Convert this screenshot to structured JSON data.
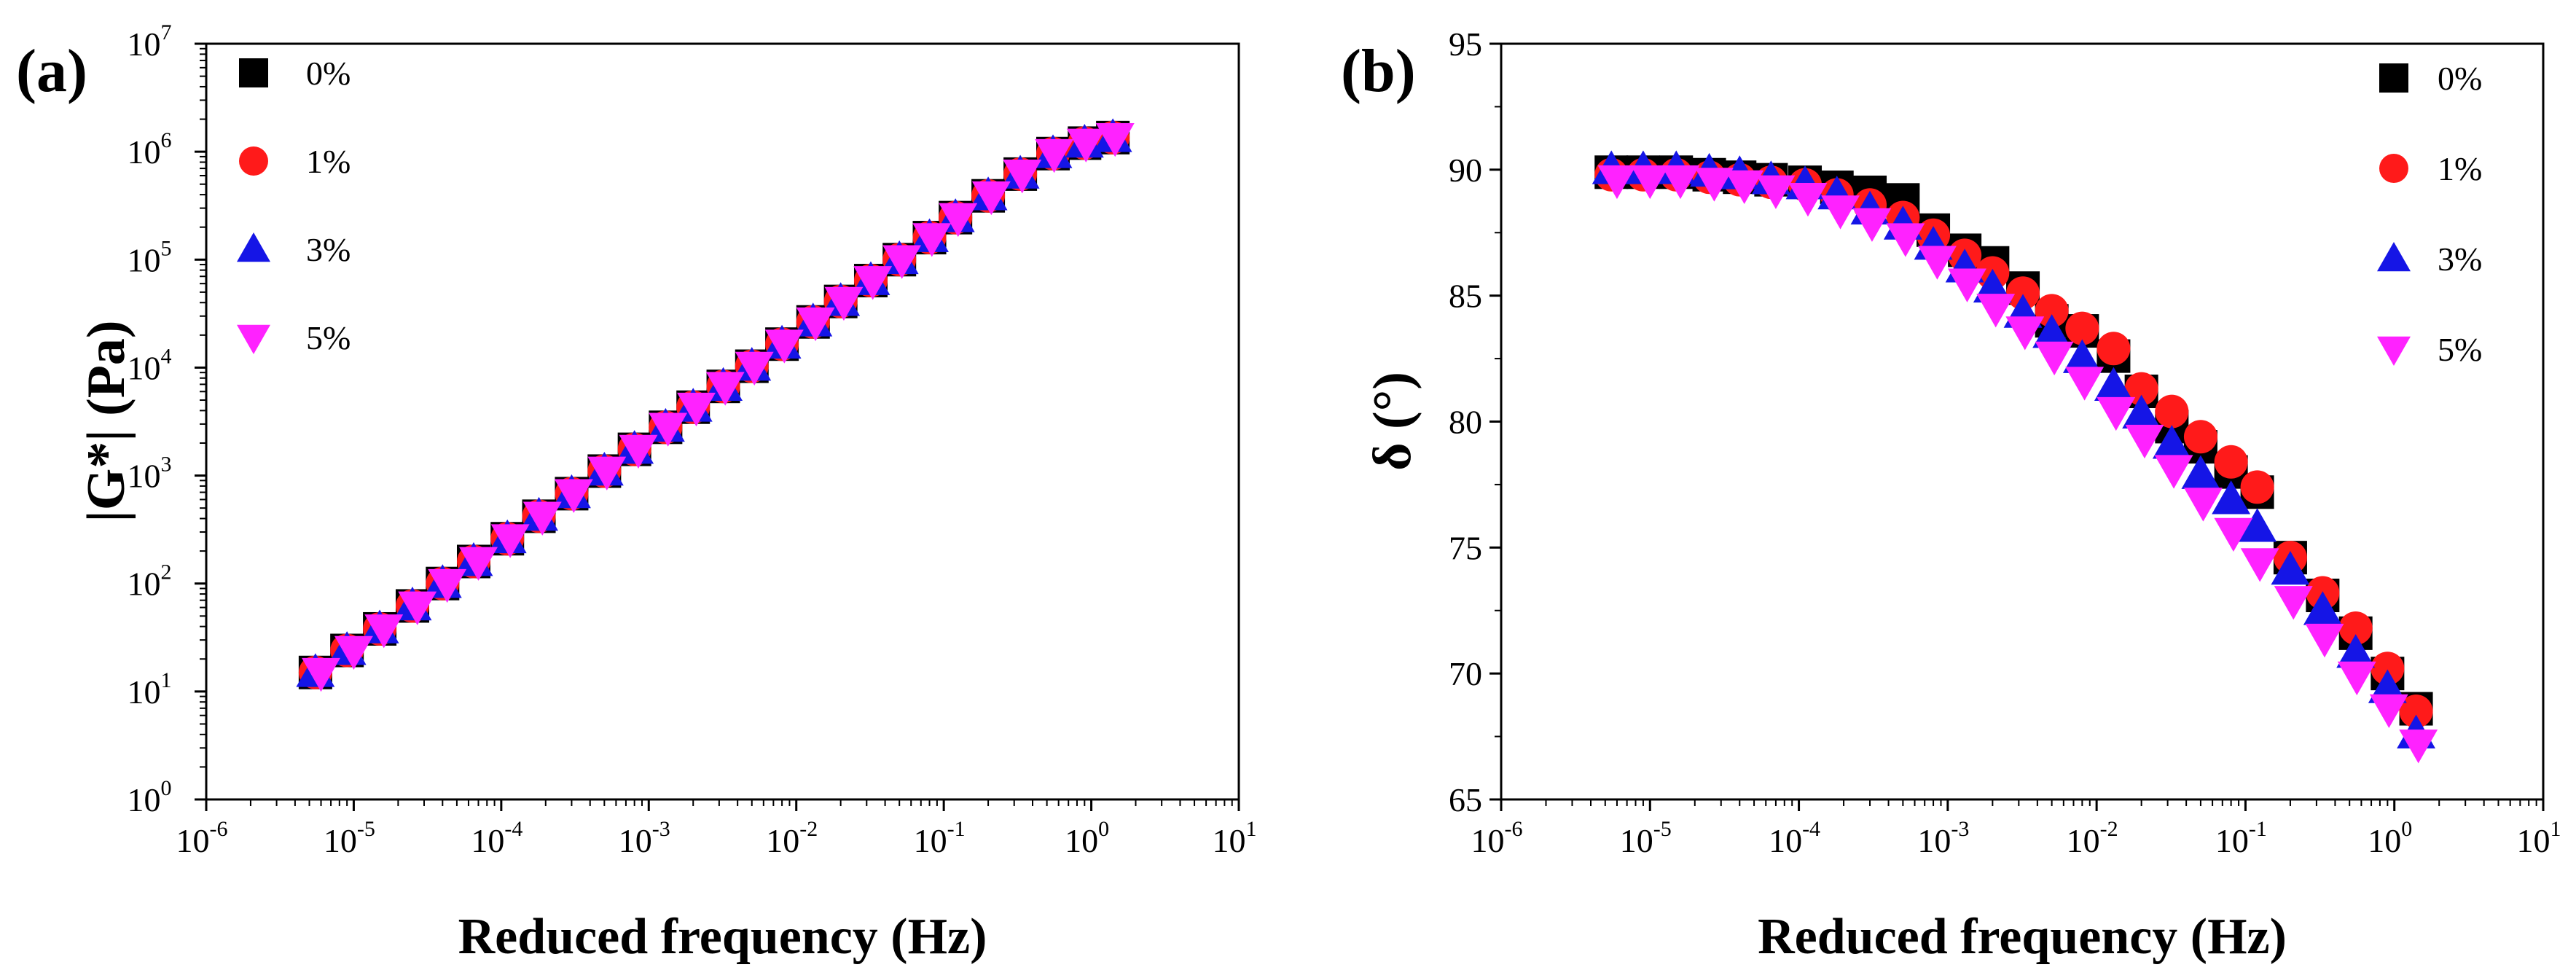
{
  "colors": {
    "s0": "#000000",
    "s1": "#ff1a1a",
    "s3": "#1515e6",
    "s5": "#ff22ff",
    "axis": "#000000"
  },
  "chart_data": [
    {
      "id": "a",
      "panel_label": "(a)",
      "type": "scatter",
      "xscale": "log",
      "yscale": "log",
      "xlabel": "Reduced frequency (Hz)",
      "ylabel": "|G*| (Pa)",
      "xlim": [
        1e-06,
        10
      ],
      "ylim": [
        1,
        10000000.0
      ],
      "xticks": [
        {
          "base": "10",
          "exp": "-6"
        },
        {
          "base": "10",
          "exp": "-5"
        },
        {
          "base": "10",
          "exp": "-4"
        },
        {
          "base": "10",
          "exp": "-3"
        },
        {
          "base": "10",
          "exp": "-2"
        },
        {
          "base": "10",
          "exp": "-1"
        },
        {
          "base": "10",
          "exp": "0"
        },
        {
          "base": "10",
          "exp": "1"
        }
      ],
      "yticks": [
        {
          "base": "10",
          "exp": "0"
        },
        {
          "base": "10",
          "exp": "1"
        },
        {
          "base": "10",
          "exp": "2"
        },
        {
          "base": "10",
          "exp": "3"
        },
        {
          "base": "10",
          "exp": "4"
        },
        {
          "base": "10",
          "exp": "5"
        },
        {
          "base": "10",
          "exp": "6"
        },
        {
          "base": "10",
          "exp": "7"
        }
      ],
      "legend_position": "top-left",
      "series": [
        {
          "name": "0%",
          "marker": "square",
          "color": "#000000",
          "x": [
            5.5e-06,
            9e-06,
            1.5e-05,
            2.5e-05,
            4e-05,
            6.5e-05,
            0.00011,
            0.00018,
            0.0003,
            0.0005,
            0.0008,
            0.0013,
            0.002,
            0.0032,
            0.005,
            0.008,
            0.013,
            0.02,
            0.032,
            0.05,
            0.08,
            0.12,
            0.2,
            0.33,
            0.55,
            0.9,
            1.4
          ],
          "y": [
            15,
            24,
            38,
            62,
            100,
            160,
            260,
            420,
            680,
            1100,
            1750,
            2800,
            4300,
            6700,
            10300,
            16500,
            26500,
            41000,
            64000,
            100000,
            160000,
            245000,
            390000,
            620000,
            960000,
            1200000,
            1350000
          ]
        },
        {
          "name": "1%",
          "marker": "circle",
          "color": "#ff1a1a",
          "x": [
            5.5e-06,
            9e-06,
            1.5e-05,
            2.5e-05,
            4e-05,
            6.5e-05,
            0.00011,
            0.00018,
            0.0003,
            0.0005,
            0.0008,
            0.0013,
            0.002,
            0.0032,
            0.005,
            0.008,
            0.013,
            0.02,
            0.032,
            0.05,
            0.08,
            0.12,
            0.2,
            0.33,
            0.55,
            0.9,
            1.4
          ],
          "y": [
            15,
            24,
            38,
            62,
            100,
            160,
            260,
            420,
            680,
            1100,
            1750,
            2800,
            4300,
            6700,
            10300,
            16500,
            26500,
            41000,
            64000,
            100000,
            160000,
            245000,
            390000,
            620000,
            960000,
            1200000,
            1350000
          ]
        },
        {
          "name": "3%",
          "marker": "triangle-up",
          "color": "#1515e6",
          "x": [
            5.5e-06,
            9e-06,
            1.5e-05,
            2.5e-05,
            4e-05,
            6.5e-05,
            0.00011,
            0.00018,
            0.0003,
            0.0005,
            0.0008,
            0.0013,
            0.002,
            0.0032,
            0.005,
            0.008,
            0.013,
            0.02,
            0.032,
            0.05,
            0.08,
            0.12,
            0.2,
            0.33,
            0.55,
            0.9,
            1.4
          ],
          "y": [
            15,
            24,
            38,
            62,
            100,
            160,
            260,
            420,
            680,
            1100,
            1750,
            2800,
            4300,
            6700,
            10300,
            16500,
            26500,
            41000,
            64000,
            100000,
            160000,
            245000,
            390000,
            620000,
            960000,
            1200000,
            1350000
          ]
        },
        {
          "name": "5%",
          "marker": "triangle-down",
          "color": "#ff22ff",
          "x": [
            6e-06,
            1e-05,
            1.6e-05,
            2.7e-05,
            4.3e-05,
            7e-05,
            0.000115,
            0.00019,
            0.00031,
            0.00052,
            0.00085,
            0.00135,
            0.0021,
            0.0033,
            0.0052,
            0.0083,
            0.0135,
            0.021,
            0.033,
            0.052,
            0.083,
            0.125,
            0.21,
            0.34,
            0.56,
            0.92,
            1.45
          ],
          "y": [
            15,
            24,
            38,
            62,
            100,
            160,
            260,
            420,
            680,
            1100,
            1750,
            2800,
            4300,
            6700,
            10300,
            16500,
            26500,
            41000,
            64000,
            100000,
            160000,
            245000,
            390000,
            620000,
            960000,
            1200000,
            1350000
          ]
        }
      ]
    },
    {
      "id": "b",
      "panel_label": "(b)",
      "type": "scatter",
      "xscale": "log",
      "yscale": "linear",
      "xlabel": "Reduced frequency (Hz)",
      "ylabel": "δ (°)",
      "xlim": [
        1e-06,
        10
      ],
      "ylim": [
        65,
        95
      ],
      "xticks": [
        {
          "base": "10",
          "exp": "-6"
        },
        {
          "base": "10",
          "exp": "-5"
        },
        {
          "base": "10",
          "exp": "-4"
        },
        {
          "base": "10",
          "exp": "-3"
        },
        {
          "base": "10",
          "exp": "-2"
        },
        {
          "base": "10",
          "exp": "-1"
        },
        {
          "base": "10",
          "exp": "0"
        },
        {
          "base": "10",
          "exp": "1"
        }
      ],
      "yticks": [
        {
          "label": "65",
          "value": 65
        },
        {
          "label": "70",
          "value": 70
        },
        {
          "label": "75",
          "value": 75
        },
        {
          "label": "80",
          "value": 80
        },
        {
          "label": "85",
          "value": 85
        },
        {
          "label": "90",
          "value": 90
        },
        {
          "label": "95",
          "value": 95
        }
      ],
      "legend_position": "top-right",
      "series": [
        {
          "name": "0%",
          "marker": "square",
          "color": "#000000",
          "x": [
            5.5e-06,
            9e-06,
            1.5e-05,
            2.5e-05,
            4e-05,
            6.5e-05,
            0.00011,
            0.00018,
            0.0003,
            0.0005,
            0.0008,
            0.0013,
            0.002,
            0.0032,
            0.005,
            0.008,
            0.013,
            0.02,
            0.032,
            0.05,
            0.08,
            0.12,
            0.2,
            0.33,
            0.55,
            0.9,
            1.4
          ],
          "y": [
            89.9,
            89.9,
            89.9,
            89.8,
            89.7,
            89.6,
            89.5,
            89.3,
            89.1,
            88.8,
            87.6,
            86.8,
            86.3,
            85.3,
            84.0,
            83.6,
            82.6,
            81.2,
            79.8,
            79.0,
            78.0,
            77.2,
            74.6,
            73.1,
            71.6,
            70.0,
            68.6
          ]
        },
        {
          "name": "1%",
          "marker": "circle",
          "color": "#ff1a1a",
          "x": [
            5.5e-06,
            9e-06,
            1.5e-05,
            2.5e-05,
            4e-05,
            6.5e-05,
            0.00011,
            0.00018,
            0.0003,
            0.0005,
            0.0008,
            0.0013,
            0.002,
            0.0032,
            0.005,
            0.008,
            0.013,
            0.02,
            0.032,
            0.05,
            0.08,
            0.12,
            0.2,
            0.33,
            0.55,
            0.9,
            1.4
          ],
          "y": [
            89.8,
            89.8,
            89.8,
            89.7,
            89.6,
            89.5,
            89.4,
            89.0,
            88.6,
            88.1,
            87.4,
            86.6,
            85.9,
            85.1,
            84.4,
            83.7,
            82.9,
            81.3,
            80.4,
            79.4,
            78.4,
            77.4,
            74.6,
            73.2,
            71.8,
            70.2,
            68.5
          ]
        },
        {
          "name": "3%",
          "marker": "triangle-up",
          "color": "#1515e6",
          "x": [
            5.5e-06,
            9e-06,
            1.5e-05,
            2.5e-05,
            4e-05,
            6.5e-05,
            0.00011,
            0.00018,
            0.0003,
            0.0005,
            0.0008,
            0.0013,
            0.002,
            0.0032,
            0.005,
            0.008,
            0.013,
            0.02,
            0.032,
            0.05,
            0.08,
            0.12,
            0.2,
            0.33,
            0.55,
            0.9,
            1.4
          ],
          "y": [
            90.0,
            90.0,
            90.0,
            89.9,
            89.8,
            89.6,
            89.4,
            89.0,
            88.4,
            87.8,
            87.0,
            86.1,
            85.3,
            84.3,
            83.5,
            82.5,
            81.4,
            80.3,
            79.1,
            77.9,
            76.9,
            75.8,
            74.1,
            72.5,
            70.8,
            69.4,
            67.6
          ]
        },
        {
          "name": "5%",
          "marker": "triangle-down",
          "color": "#ff22ff",
          "x": [
            6e-06,
            1e-05,
            1.6e-05,
            2.7e-05,
            4.3e-05,
            7e-05,
            0.000115,
            0.00019,
            0.00031,
            0.00052,
            0.00085,
            0.00135,
            0.0021,
            0.0033,
            0.0052,
            0.0083,
            0.0135,
            0.021,
            0.033,
            0.052,
            0.083,
            0.125,
            0.21,
            0.34,
            0.56,
            0.92,
            1.45
          ],
          "y": [
            89.6,
            89.6,
            89.6,
            89.5,
            89.4,
            89.2,
            88.9,
            88.4,
            87.9,
            87.3,
            86.4,
            85.5,
            84.5,
            83.6,
            82.6,
            81.6,
            80.4,
            79.3,
            78.1,
            76.8,
            75.6,
            74.4,
            72.9,
            71.4,
            69.9,
            68.6,
            67.2
          ]
        }
      ]
    }
  ]
}
